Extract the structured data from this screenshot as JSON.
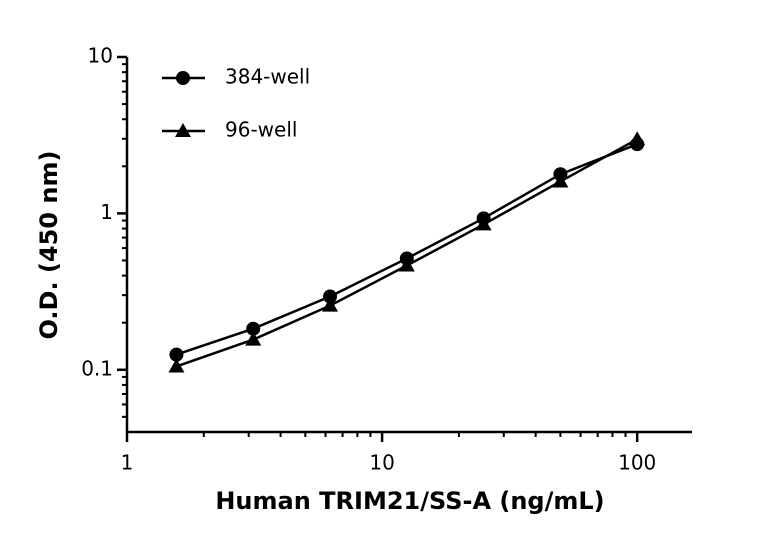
{
  "chart_data": {
    "type": "line",
    "x_label": "Human TRIM21/SS-A (ng/mL)",
    "y_label": "O.D. (450 nm)",
    "x": [
      1.5625,
      3.125,
      6.25,
      12.5,
      25,
      50,
      100
    ],
    "series": [
      {
        "name": "384-well",
        "color": "#000000",
        "marker": "circle",
        "values": [
          0.125,
          0.183,
          0.294,
          0.515,
          0.93,
          1.78,
          2.77
        ]
      },
      {
        "name": "96-well",
        "color": "#000000",
        "marker": "triangle",
        "values": [
          0.105,
          0.156,
          0.257,
          0.464,
          0.85,
          1.6,
          2.98
        ]
      }
    ],
    "xscale": "log",
    "yscale": "log",
    "xlim": [
      1,
      164
    ],
    "ylim": [
      0.04,
      10
    ],
    "xticks": [
      1,
      10,
      100
    ],
    "yticks": [
      0.1,
      1,
      10
    ],
    "x_minor_ticks": [
      2,
      3,
      4,
      5,
      6,
      7,
      8,
      9,
      20,
      30,
      40,
      50,
      60,
      70,
      80,
      90
    ],
    "y_minor_ticks": [
      0.05,
      0.06,
      0.07,
      0.08,
      0.09,
      0.2,
      0.3,
      0.4,
      0.5,
      0.6,
      0.7,
      0.8,
      0.9,
      2,
      3,
      4,
      5,
      6,
      7,
      8,
      9
    ],
    "grid": false,
    "legend": "upper left"
  }
}
